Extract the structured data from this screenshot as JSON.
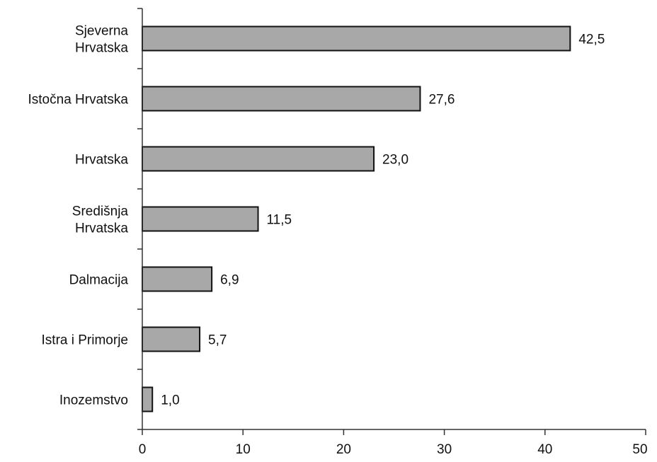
{
  "chart_data": {
    "type": "bar",
    "orientation": "horizontal",
    "categories": [
      [
        "Sjeverna",
        "Hrvatska"
      ],
      [
        "Istočna Hrvatska"
      ],
      [
        "Hrvatska"
      ],
      [
        "Središnja",
        "Hrvatska"
      ],
      [
        "Dalmacija"
      ],
      [
        "Istra i Primorje"
      ],
      [
        "Inozemstvo"
      ]
    ],
    "values": [
      42.5,
      27.6,
      23.0,
      11.5,
      6.9,
      5.7,
      1.0
    ],
    "value_labels": [
      "42,5",
      "27,6",
      "23,0",
      "11,5",
      "6,9",
      "5,7",
      "1,0"
    ],
    "x_ticks": [
      "0",
      "10",
      "20",
      "30",
      "40",
      "50"
    ],
    "xlim": [
      0,
      50
    ],
    "title": "",
    "xlabel": "",
    "ylabel": "",
    "grid": false,
    "colors": {
      "bar_fill": "#a8a8a8",
      "bar_stroke": "#111111"
    }
  }
}
